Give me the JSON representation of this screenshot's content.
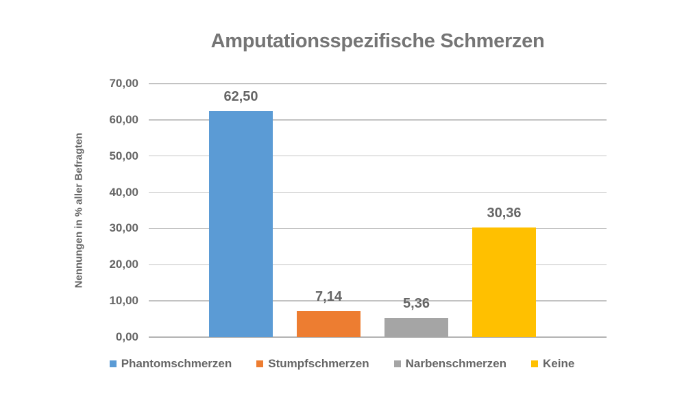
{
  "chart_data": {
    "type": "bar",
    "title": "Amputationsspezifische Schmerzen",
    "ylabel": "Nennungen in % aller Befragten",
    "xlabel": "",
    "categories": [
      "Phantomschmerzen",
      "Stumpfschmerzen",
      "Narbenschmerzen",
      "Keine"
    ],
    "series": [
      {
        "name": "Phantomschmerzen",
        "value": 62.5,
        "value_label": "62,50",
        "color": "#5B9BD5"
      },
      {
        "name": "Stumpfschmerzen",
        "value": 7.14,
        "value_label": "7,14",
        "color": "#ED7D31"
      },
      {
        "name": "Narbenschmerzen",
        "value": 5.36,
        "value_label": "5,36",
        "color": "#A5A5A5"
      },
      {
        "name": "Keine",
        "value": 30.36,
        "value_label": "30,36",
        "color": "#FFC000"
      }
    ],
    "ylim": [
      0,
      70
    ],
    "yticks": [
      {
        "value": 0,
        "label": "0,00"
      },
      {
        "value": 10,
        "label": "10,00"
      },
      {
        "value": 20,
        "label": "20,00"
      },
      {
        "value": 30,
        "label": "30,00"
      },
      {
        "value": 40,
        "label": "40,00"
      },
      {
        "value": 50,
        "label": "50,00"
      },
      {
        "value": 60,
        "label": "60,00"
      },
      {
        "value": 70,
        "label": "70,00"
      }
    ],
    "grid": true,
    "legend_position": "bottom",
    "legend": [
      "Phantomschmerzen",
      "Stumpfschmerzen",
      "Narbenschmerzen",
      "Keine"
    ]
  },
  "style": {
    "bar_colors": [
      "#5B9BD5",
      "#ED7D31",
      "#A5A5A5",
      "#FFC000"
    ],
    "title_color": "#757575",
    "label_color": "#666666",
    "grid_color": "#c3c3c3",
    "axis_line_color": "#b3b3b3",
    "background": "#ffffff"
  }
}
